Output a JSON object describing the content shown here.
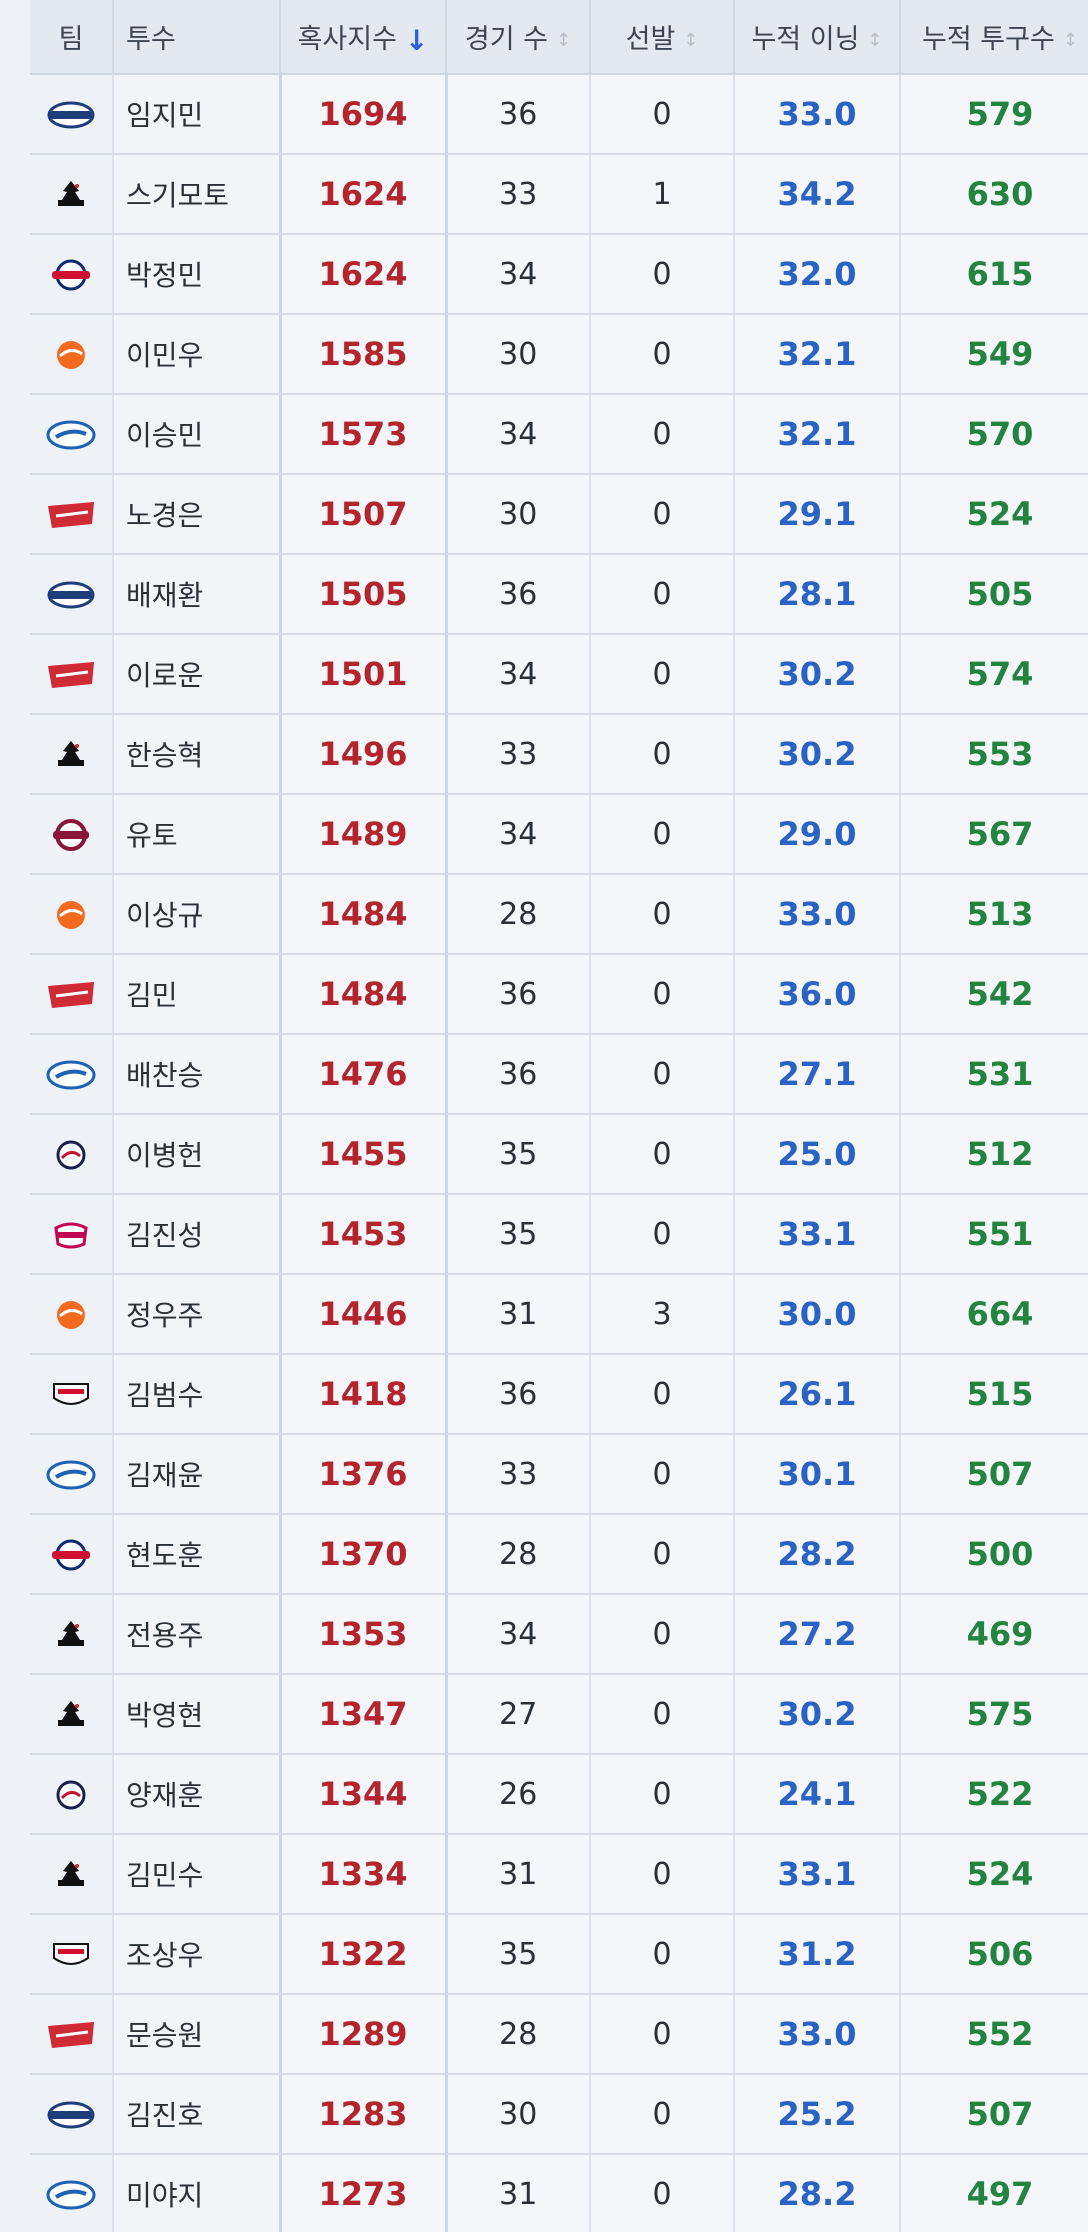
{
  "columns": {
    "team": "팀",
    "pitcher": "투수",
    "index": "혹사지수",
    "games": "경기 수",
    "starts": "선발",
    "innings": "누적 이닝",
    "pitches": "누적 투구수"
  },
  "sort": {
    "active_icon": "arrow-down-icon",
    "inactive_icon": "sort-icon"
  },
  "team_colors": {
    "dinos": "#1f3d7a",
    "kt": "#111111",
    "giants": "#0d2b6b",
    "eagles": "#f26b21",
    "lions": "#1c63b7",
    "landers": "#ce2b37",
    "kiwoom": "#8a1538",
    "bears": "#1a1f4b",
    "twins": "#c30452",
    "tigers": "#111111"
  },
  "rows": [
    {
      "team": "dinos",
      "name": "임지민",
      "index": "1694",
      "games": "36",
      "starts": "0",
      "innings": "33.0",
      "pitches": "579"
    },
    {
      "team": "kt",
      "name": "스기모토",
      "index": "1624",
      "games": "33",
      "starts": "1",
      "innings": "34.2",
      "pitches": "630"
    },
    {
      "team": "giants",
      "name": "박정민",
      "index": "1624",
      "games": "34",
      "starts": "0",
      "innings": "32.0",
      "pitches": "615"
    },
    {
      "team": "eagles",
      "name": "이민우",
      "index": "1585",
      "games": "30",
      "starts": "0",
      "innings": "32.1",
      "pitches": "549"
    },
    {
      "team": "lions",
      "name": "이승민",
      "index": "1573",
      "games": "34",
      "starts": "0",
      "innings": "32.1",
      "pitches": "570"
    },
    {
      "team": "landers",
      "name": "노경은",
      "index": "1507",
      "games": "30",
      "starts": "0",
      "innings": "29.1",
      "pitches": "524"
    },
    {
      "team": "dinos",
      "name": "배재환",
      "index": "1505",
      "games": "36",
      "starts": "0",
      "innings": "28.1",
      "pitches": "505"
    },
    {
      "team": "landers",
      "name": "이로운",
      "index": "1501",
      "games": "34",
      "starts": "0",
      "innings": "30.2",
      "pitches": "574"
    },
    {
      "team": "kt",
      "name": "한승혁",
      "index": "1496",
      "games": "33",
      "starts": "0",
      "innings": "30.2",
      "pitches": "553"
    },
    {
      "team": "kiwoom",
      "name": "유토",
      "index": "1489",
      "games": "34",
      "starts": "0",
      "innings": "29.0",
      "pitches": "567"
    },
    {
      "team": "eagles",
      "name": "이상규",
      "index": "1484",
      "games": "28",
      "starts": "0",
      "innings": "33.0",
      "pitches": "513"
    },
    {
      "team": "landers",
      "name": "김민",
      "index": "1484",
      "games": "36",
      "starts": "0",
      "innings": "36.0",
      "pitches": "542"
    },
    {
      "team": "lions",
      "name": "배찬승",
      "index": "1476",
      "games": "36",
      "starts": "0",
      "innings": "27.1",
      "pitches": "531"
    },
    {
      "team": "bears",
      "name": "이병헌",
      "index": "1455",
      "games": "35",
      "starts": "0",
      "innings": "25.0",
      "pitches": "512"
    },
    {
      "team": "twins",
      "name": "김진성",
      "index": "1453",
      "games": "35",
      "starts": "0",
      "innings": "33.1",
      "pitches": "551"
    },
    {
      "team": "eagles",
      "name": "정우주",
      "index": "1446",
      "games": "31",
      "starts": "3",
      "innings": "30.0",
      "pitches": "664"
    },
    {
      "team": "tigers",
      "name": "김범수",
      "index": "1418",
      "games": "36",
      "starts": "0",
      "innings": "26.1",
      "pitches": "515"
    },
    {
      "team": "lions",
      "name": "김재윤",
      "index": "1376",
      "games": "33",
      "starts": "0",
      "innings": "30.1",
      "pitches": "507"
    },
    {
      "team": "giants",
      "name": "현도훈",
      "index": "1370",
      "games": "28",
      "starts": "0",
      "innings": "28.2",
      "pitches": "500"
    },
    {
      "team": "kt",
      "name": "전용주",
      "index": "1353",
      "games": "34",
      "starts": "0",
      "innings": "27.2",
      "pitches": "469"
    },
    {
      "team": "kt",
      "name": "박영현",
      "index": "1347",
      "games": "27",
      "starts": "0",
      "innings": "30.2",
      "pitches": "575"
    },
    {
      "team": "bears",
      "name": "양재훈",
      "index": "1344",
      "games": "26",
      "starts": "0",
      "innings": "24.1",
      "pitches": "522"
    },
    {
      "team": "kt",
      "name": "김민수",
      "index": "1334",
      "games": "31",
      "starts": "0",
      "innings": "33.1",
      "pitches": "524"
    },
    {
      "team": "tigers",
      "name": "조상우",
      "index": "1322",
      "games": "35",
      "starts": "0",
      "innings": "31.2",
      "pitches": "506"
    },
    {
      "team": "landers",
      "name": "문승원",
      "index": "1289",
      "games": "28",
      "starts": "0",
      "innings": "33.0",
      "pitches": "552"
    },
    {
      "team": "dinos",
      "name": "김진호",
      "index": "1283",
      "games": "30",
      "starts": "0",
      "innings": "25.2",
      "pitches": "507"
    },
    {
      "team": "lions",
      "name": "미야지",
      "index": "1273",
      "games": "31",
      "starts": "0",
      "innings": "28.2",
      "pitches": "497"
    }
  ]
}
